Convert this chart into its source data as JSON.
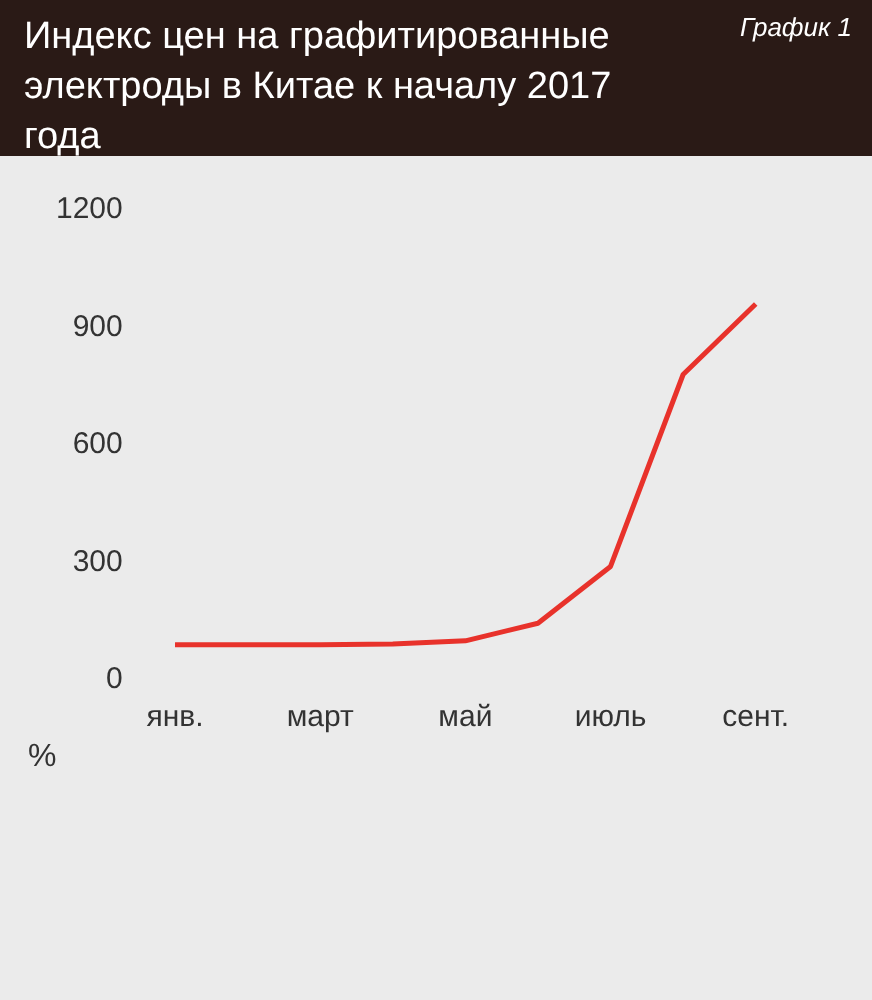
{
  "chart_data": {
    "type": "line",
    "title": "Индекс цен на графитированные электроды в Китае к началу 2017 года",
    "annotations": [
      "График 1"
    ],
    "ylabel": "%",
    "categories": [
      "янв.",
      null,
      "март",
      null,
      "май",
      null,
      "июль",
      null,
      "сент."
    ],
    "series": [
      {
        "color": "#e8322b",
        "values": [
          90,
          90,
          90,
          92,
          100,
          145,
          290,
          780,
          960
        ]
      }
    ],
    "ylim": [
      0,
      1200
    ],
    "yticks": [
      0,
      300,
      600,
      900,
      1200
    ],
    "grid": false,
    "legend": false,
    "marker": "none",
    "line_style": "solid"
  }
}
